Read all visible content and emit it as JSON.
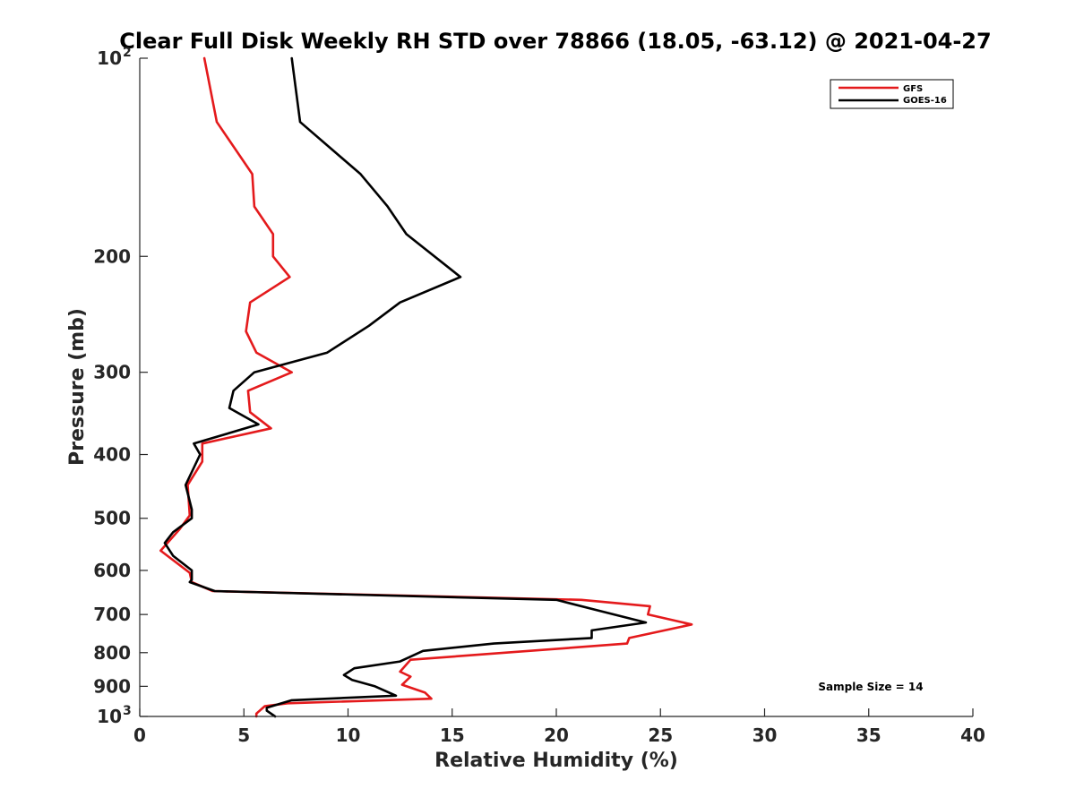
{
  "chart_data": {
    "type": "line",
    "title": "Clear Full Disk Weekly RH STD over 78866 (18.05, -63.12) @ 2021-04-27",
    "xlabel": "Relative Humidity (%)",
    "ylabel": "Pressure (mb)",
    "xlim": [
      0,
      40
    ],
    "ylim": [
      100,
      1000
    ],
    "yscale": "log",
    "y_reversed": true,
    "grid": false,
    "legend_position": "top-right",
    "x_ticks": [
      0,
      5,
      10,
      15,
      20,
      25,
      30,
      35,
      40
    ],
    "y_ticks": [
      200,
      300,
      400,
      500,
      600,
      700,
      800,
      900
    ],
    "y_tick_top": {
      "base": "10",
      "exp": "2"
    },
    "y_tick_bottom": {
      "base": "10",
      "exp": "3"
    },
    "annotation": "Sample Size = 14",
    "series": [
      {
        "name": "GFS",
        "color": "#e41a1c",
        "points": [
          [
            3.1,
            100
          ],
          [
            3.7,
            125
          ],
          [
            5.4,
            150
          ],
          [
            5.5,
            168
          ],
          [
            6.4,
            185
          ],
          [
            6.4,
            200
          ],
          [
            7.2,
            215
          ],
          [
            5.3,
            235
          ],
          [
            5.1,
            260
          ],
          [
            5.6,
            280
          ],
          [
            7.3,
            300
          ],
          [
            5.2,
            320
          ],
          [
            5.3,
            345
          ],
          [
            6.3,
            365
          ],
          [
            3.0,
            385
          ],
          [
            3.0,
            410
          ],
          [
            2.3,
            445
          ],
          [
            2.4,
            495
          ],
          [
            1.9,
            520
          ],
          [
            1.0,
            560
          ],
          [
            2.4,
            605
          ],
          [
            2.5,
            625
          ],
          [
            3.5,
            645
          ],
          [
            21.2,
            665
          ],
          [
            24.5,
            680
          ],
          [
            24.4,
            700
          ],
          [
            26.5,
            725
          ],
          [
            23.5,
            760
          ],
          [
            23.4,
            775
          ],
          [
            13.0,
            820
          ],
          [
            12.5,
            855
          ],
          [
            13.0,
            870
          ],
          [
            12.6,
            895
          ],
          [
            13.7,
            920
          ],
          [
            14.0,
            940
          ],
          [
            7.1,
            955
          ],
          [
            6.0,
            965
          ],
          [
            5.6,
            990
          ],
          [
            5.6,
            1000
          ]
        ]
      },
      {
        "name": "GOES-16",
        "color": "#000000",
        "points": [
          [
            7.3,
            100
          ],
          [
            7.7,
            125
          ],
          [
            10.6,
            150
          ],
          [
            11.9,
            168
          ],
          [
            12.8,
            185
          ],
          [
            15.4,
            215
          ],
          [
            12.5,
            235
          ],
          [
            11.0,
            255
          ],
          [
            9.0,
            280
          ],
          [
            5.5,
            300
          ],
          [
            4.5,
            320
          ],
          [
            4.3,
            340
          ],
          [
            5.7,
            360
          ],
          [
            2.6,
            385
          ],
          [
            2.9,
            400
          ],
          [
            2.2,
            445
          ],
          [
            2.5,
            485
          ],
          [
            2.5,
            500
          ],
          [
            1.6,
            525
          ],
          [
            1.2,
            545
          ],
          [
            1.6,
            570
          ],
          [
            2.5,
            600
          ],
          [
            2.5,
            620
          ],
          [
            2.4,
            625
          ],
          [
            3.6,
            645
          ],
          [
            20.0,
            665
          ],
          [
            22.0,
            690
          ],
          [
            24.3,
            720
          ],
          [
            21.7,
            740
          ],
          [
            21.7,
            760
          ],
          [
            17.0,
            775
          ],
          [
            13.6,
            795
          ],
          [
            12.5,
            825
          ],
          [
            10.3,
            845
          ],
          [
            9.8,
            865
          ],
          [
            10.2,
            880
          ],
          [
            11.3,
            900
          ],
          [
            12.3,
            930
          ],
          [
            7.3,
            945
          ],
          [
            6.1,
            970
          ],
          [
            6.1,
            980
          ],
          [
            6.5,
            1000
          ]
        ]
      }
    ]
  }
}
